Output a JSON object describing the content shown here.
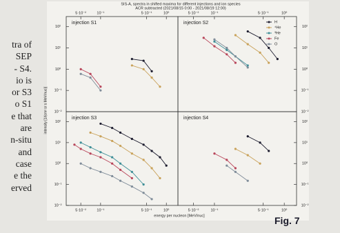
{
  "page": {
    "left_text": [
      "tra of",
      "SEP",
      "- S4.",
      "io is",
      "or S3",
      "o S1",
      "e that",
      "are",
      "n-situ",
      "and",
      "case",
      "e the",
      "erved"
    ],
    "caption": "Fig. 7"
  },
  "chart_data": [
    {
      "type": "line",
      "title": "SIS-A, spectra in shifted maxima for different injections and ion species",
      "subtitle": "ACR subtracted (2021/08/15 0:00 - 2021/08/19 12:00)",
      "panel": "injection S1",
      "ylabel": "intensity [1/(cm² sr s MeV/nuc)]",
      "log": true,
      "xlim": [
        0.03,
        1.5
      ],
      "ylim": [
        0.01,
        300
      ],
      "xticks": [
        {
          "value": 0.05,
          "label": "5·10⁻²"
        },
        {
          "value": 0.1,
          "label": "10⁻¹"
        },
        {
          "value": 0.5,
          "label": "5·10⁻¹"
        },
        {
          "value": 1,
          "label": "10⁰"
        }
      ],
      "yticks": [
        {
          "value": 0.01,
          "label": "10⁻²"
        },
        {
          "value": 0.1,
          "label": "10⁻¹"
        },
        {
          "value": 1,
          "label": "10⁰"
        },
        {
          "value": 10,
          "label": "10¹"
        },
        {
          "value": 100,
          "label": "10²"
        }
      ],
      "series": [
        {
          "color": "#1c1c2e",
          "x": [
            0.3,
            0.45,
            0.6
          ],
          "values": [
            3,
            2.5,
            0.8
          ]
        },
        {
          "color": "#c9a25a",
          "x": [
            0.3,
            0.45,
            0.6,
            0.8
          ],
          "values": [
            1.5,
            1,
            0.4,
            0.15
          ]
        },
        {
          "color": "#b8455a",
          "x": [
            0.05,
            0.07,
            0.1
          ],
          "values": [
            1,
            0.6,
            0.15
          ]
        },
        {
          "color": "#7f8c99",
          "x": [
            0.05,
            0.07,
            0.1
          ],
          "values": [
            0.6,
            0.4,
            0.1
          ]
        }
      ]
    },
    {
      "type": "line",
      "panel": "injection S2",
      "log": true,
      "legend": "upper right",
      "xlim": [
        0.03,
        1.5
      ],
      "ylim": [
        0.01,
        300
      ],
      "xticks": [
        {
          "value": 0.05,
          "label": "5·10⁻²"
        },
        {
          "value": 0.1,
          "label": "10⁻¹"
        },
        {
          "value": 0.5,
          "label": "5·10⁻¹"
        },
        {
          "value": 1,
          "label": "10⁰"
        }
      ],
      "yticks": [
        {
          "value": 0.01,
          "label": "10⁻²"
        },
        {
          "value": 0.1,
          "label": "10⁻¹"
        },
        {
          "value": 1,
          "label": "10⁰"
        },
        {
          "value": 10,
          "label": "10¹"
        },
        {
          "value": 100,
          "label": "10²"
        }
      ],
      "series": [
        {
          "name": "H",
          "color": "#1c1c2e",
          "x": [
            0.3,
            0.45,
            0.6,
            0.8
          ],
          "values": [
            60,
            30,
            10,
            3
          ]
        },
        {
          "name": "⁴He",
          "color": "#c9a25a",
          "x": [
            0.2,
            0.3,
            0.45,
            0.6
          ],
          "values": [
            40,
            15,
            6,
            2
          ]
        },
        {
          "name": "³He",
          "color": "#3f8f98",
          "x": [
            0.1,
            0.15,
            0.2,
            0.3
          ],
          "values": [
            20,
            8,
            4,
            1.5
          ]
        },
        {
          "name": "Fe",
          "color": "#b8455a",
          "x": [
            0.07,
            0.1,
            0.15,
            0.2
          ],
          "values": [
            30,
            12,
            5,
            2
          ]
        },
        {
          "name": "O",
          "color": "#7f8c99",
          "x": [
            0.1,
            0.15,
            0.2,
            0.3
          ],
          "values": [
            25,
            10,
            4,
            1.2
          ]
        }
      ]
    },
    {
      "type": "line",
      "panel": "injection S3",
      "xlabel": "energy per nucleon [MeV/nuc]",
      "log": true,
      "xlim": [
        0.03,
        1.5
      ],
      "ylim": [
        0.01,
        300
      ],
      "xticks": [
        {
          "value": 0.05,
          "label": "5·10⁻²"
        },
        {
          "value": 0.1,
          "label": "10⁻¹"
        },
        {
          "value": 0.5,
          "label": "5·10⁻¹"
        },
        {
          "value": 1,
          "label": "10⁰"
        }
      ],
      "yticks": [
        {
          "value": 0.01,
          "label": "10⁻²"
        },
        {
          "value": 0.1,
          "label": "10⁻¹"
        },
        {
          "value": 1,
          "label": "10⁰"
        },
        {
          "value": 10,
          "label": "10¹"
        },
        {
          "value": 100,
          "label": "10²"
        }
      ],
      "series": [
        {
          "color": "#1c1c2e",
          "x": [
            0.1,
            0.15,
            0.2,
            0.3,
            0.45,
            0.6,
            0.8,
            1
          ],
          "values": [
            80,
            50,
            30,
            15,
            8,
            4,
            2,
            0.8
          ]
        },
        {
          "color": "#c9a25a",
          "x": [
            0.07,
            0.1,
            0.15,
            0.2,
            0.3,
            0.45,
            0.6,
            0.8
          ],
          "values": [
            30,
            20,
            12,
            7,
            3,
            1.5,
            0.6,
            0.2
          ]
        },
        {
          "color": "#3f8f98",
          "x": [
            0.05,
            0.07,
            0.1,
            0.15,
            0.2,
            0.3,
            0.45
          ],
          "values": [
            10,
            6,
            3.5,
            2,
            1,
            0.4,
            0.1
          ]
        },
        {
          "color": "#b8455a",
          "x": [
            0.04,
            0.05,
            0.07,
            0.1,
            0.15,
            0.2,
            0.3
          ],
          "values": [
            8,
            5,
            3,
            2,
            1,
            0.5,
            0.2
          ]
        },
        {
          "color": "#7f8c99",
          "x": [
            0.05,
            0.07,
            0.1,
            0.15,
            0.2,
            0.3,
            0.45,
            0.6
          ],
          "values": [
            1,
            0.6,
            0.4,
            0.25,
            0.15,
            0.08,
            0.04,
            0.02
          ]
        }
      ]
    },
    {
      "type": "line",
      "panel": "injection S4",
      "log": true,
      "xlim": [
        0.03,
        1.5
      ],
      "ylim": [
        0.01,
        300
      ],
      "xticks": [
        {
          "value": 0.05,
          "label": "5·10⁻²"
        },
        {
          "value": 0.1,
          "label": "10⁻¹"
        },
        {
          "value": 0.5,
          "label": "5·10⁻¹"
        },
        {
          "value": 1,
          "label": "10⁰"
        }
      ],
      "yticks": [
        {
          "value": 0.01,
          "label": "10⁻²"
        },
        {
          "value": 0.1,
          "label": "10⁻¹"
        },
        {
          "value": 1,
          "label": "10⁰"
        },
        {
          "value": 10,
          "label": "10¹"
        },
        {
          "value": 100,
          "label": "10²"
        }
      ],
      "series": [
        {
          "color": "#1c1c2e",
          "x": [
            0.3,
            0.45,
            0.6
          ],
          "values": [
            20,
            10,
            4
          ]
        },
        {
          "color": "#c9a25a",
          "x": [
            0.2,
            0.3,
            0.45
          ],
          "values": [
            5,
            2.5,
            1
          ]
        },
        {
          "color": "#b8455a",
          "x": [
            0.1,
            0.15,
            0.2
          ],
          "values": [
            3,
            1.5,
            0.6
          ]
        },
        {
          "color": "#7f8c99",
          "x": [
            0.15,
            0.2,
            0.3
          ],
          "values": [
            0.8,
            0.4,
            0.15
          ]
        }
      ]
    }
  ]
}
